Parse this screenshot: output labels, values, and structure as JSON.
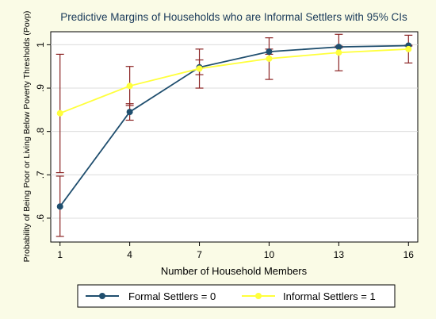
{
  "chart_data": {
    "type": "line",
    "title": "Predictive Margins of Households who are Informal Settlers with 95% CIs",
    "xlabel": "Number of Household Members",
    "ylabel": "Probability of Being Poor or Living Below Poverty Thresholds (Povp)",
    "x": [
      1,
      4,
      7,
      10,
      13,
      16
    ],
    "x_ticks": [
      "1",
      "4",
      "7",
      "10",
      "13",
      "16"
    ],
    "y_ticks": [
      ".6",
      ".7",
      ".8",
      ".9",
      "1"
    ],
    "xlim": [
      0.6,
      16.4
    ],
    "ylim": [
      0.545,
      1.03
    ],
    "grid": "horizontal",
    "legend_position": "bottom",
    "series": [
      {
        "name": "Formal Settlers = 0",
        "color": "#1f4e6e",
        "marker": "circle",
        "values": [
          0.627,
          0.845,
          0.948,
          0.984,
          0.995,
          0.998
        ],
        "ci_lower": [
          0.558,
          0.826,
          0.931,
          0.978,
          0.993,
          0.997
        ],
        "ci_upper": [
          0.697,
          0.864,
          0.965,
          0.99,
          0.997,
          0.999
        ]
      },
      {
        "name": "Informal Settlers = 1",
        "color": "#ffff3c",
        "marker": "circle",
        "values": [
          0.842,
          0.905,
          0.945,
          0.968,
          0.982,
          0.99
        ],
        "ci_lower": [
          0.705,
          0.86,
          0.9,
          0.92,
          0.94,
          0.958
        ],
        "ci_upper": [
          0.978,
          0.95,
          0.99,
          1.016,
          1.024,
          1.022
        ]
      }
    ],
    "ci_color": "#8b2323"
  }
}
